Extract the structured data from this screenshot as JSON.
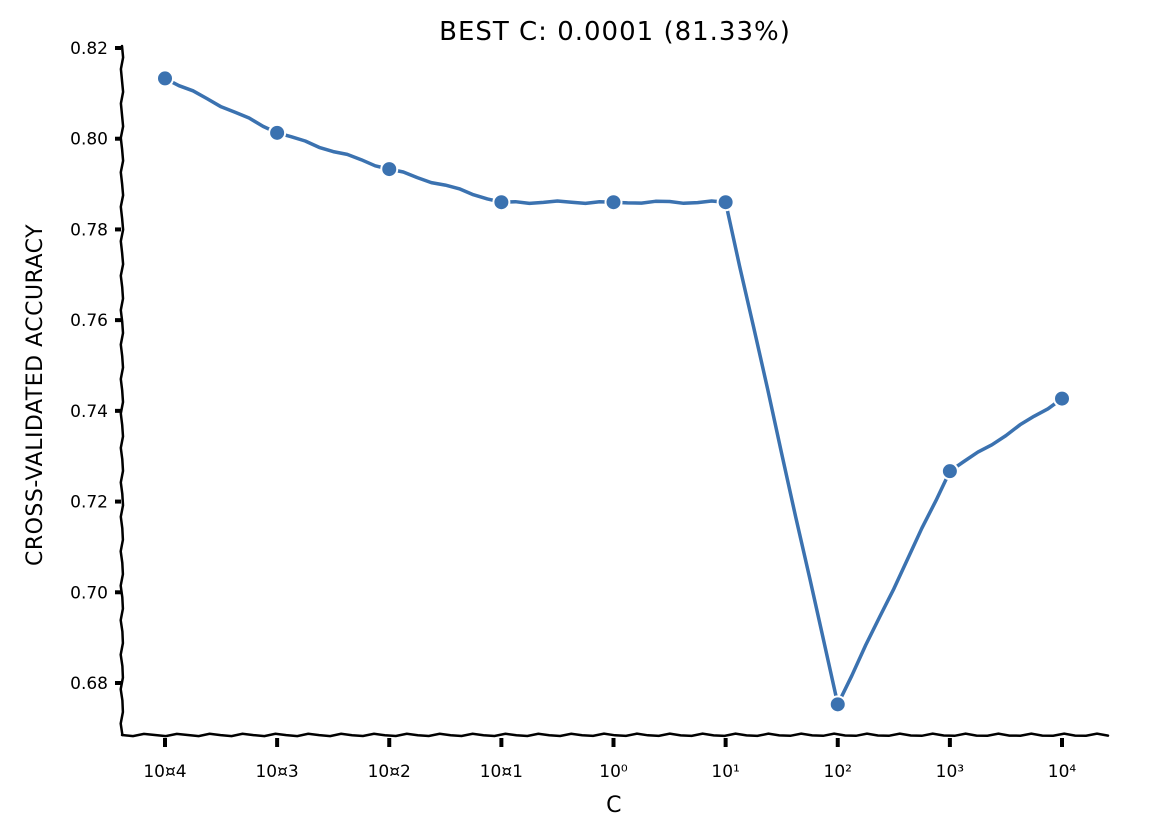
{
  "chart_data": {
    "type": "line",
    "title": "BEST C: 0.0001 (81.33%)",
    "xlabel": "C",
    "ylabel": "CROSS-VALIDATED ACCURACY",
    "x_scale": "log",
    "x": [
      0.0001,
      0.001,
      0.01,
      0.1,
      1,
      10,
      100,
      1000,
      10000
    ],
    "x_tick_labels": [
      "10¤4",
      "10¤3",
      "10¤2",
      "10¤1",
      "10⁰",
      "10¹",
      "10²",
      "10³",
      "10⁴"
    ],
    "series": [
      {
        "values": [
          0.8133,
          0.8013,
          0.7933,
          0.786,
          0.786,
          0.786,
          0.6753,
          0.7267,
          0.7427
        ],
        "color": "#3b72b0"
      }
    ],
    "ylim": [
      0.67,
      0.82
    ],
    "y_ticks": [
      0.68,
      0.7,
      0.72,
      0.74,
      0.76,
      0.78,
      0.8,
      0.82
    ],
    "y_tick_labels": [
      "0.68",
      "0.70",
      "0.72",
      "0.74",
      "0.76",
      "0.78",
      "0.80",
      "0.82"
    ],
    "grid": false,
    "legend": "none",
    "style": "xkcd"
  }
}
